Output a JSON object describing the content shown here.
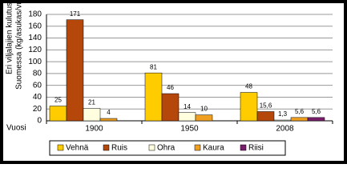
{
  "chart_data": {
    "type": "bar",
    "y_label": [
      "Eri viljalajien kulutus",
      "Suomessa (kg/asukas/vuosi)"
    ],
    "x_label": "Vuosi",
    "categories": [
      "1900",
      "1950",
      "2008"
    ],
    "series": [
      {
        "name": "Vehnä",
        "color": "#ffcc00",
        "values": [
          25,
          81,
          48
        ]
      },
      {
        "name": "Ruis",
        "color": "#b5470b",
        "values": [
          171,
          46,
          15.6
        ],
        "value_labels": [
          "171",
          "46",
          "15,6"
        ]
      },
      {
        "name": "Ohra",
        "color": "#ffffe0",
        "values": [
          21,
          14,
          1.3
        ],
        "value_labels": [
          "21",
          "14",
          "1,3"
        ]
      },
      {
        "name": "Kaura",
        "color": "#f0a020",
        "values": [
          4,
          10,
          5.6
        ],
        "value_labels": [
          "4",
          "10",
          "5,6"
        ]
      },
      {
        "name": "Riisi",
        "color": "#7a1e6c",
        "values": [
          null,
          null,
          5.6
        ],
        "value_labels": [
          null,
          null,
          "5,6"
        ]
      }
    ],
    "ylim": [
      0,
      180
    ],
    "yticks": [
      0,
      20,
      40,
      60,
      80,
      100,
      120,
      140,
      160,
      180
    ],
    "grid": true
  }
}
